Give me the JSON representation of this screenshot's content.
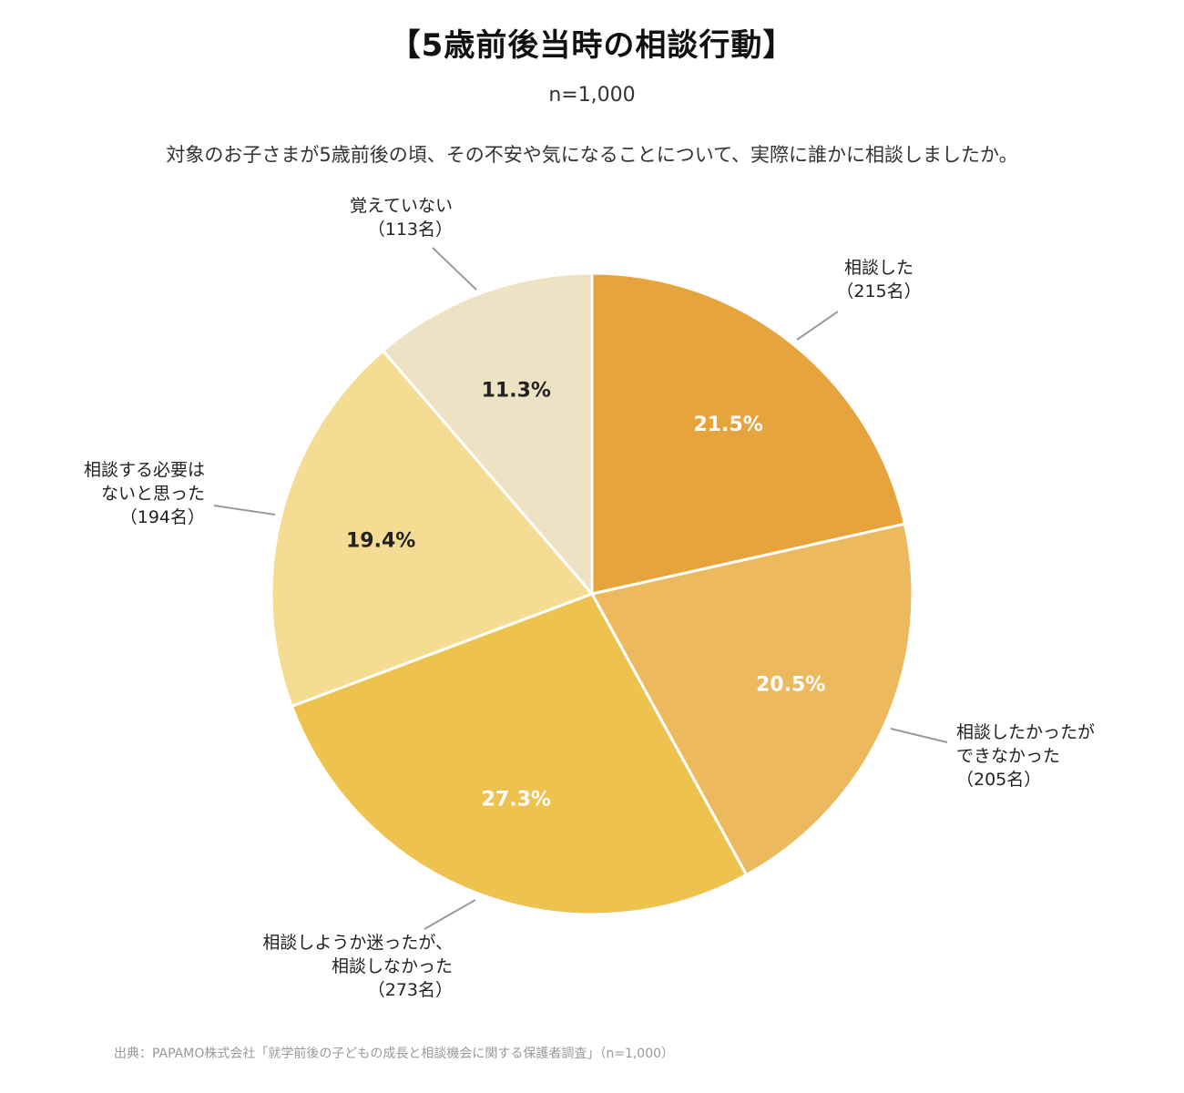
{
  "header": {
    "title": "【5歳前後当時の相談行動】",
    "sample": "n=1,000",
    "question": "対象のお子さまが5歳前後の頃、その不安や気になることについて、実際に誰かに相談しましたか。"
  },
  "chart_data": {
    "type": "pie",
    "start_angle_deg": 0,
    "direction": "clockwise",
    "slices": [
      {
        "label_lines": [
          "相談した",
          "（215名）"
        ],
        "value": 21.5,
        "pct_label": "21.5%",
        "count": 215,
        "color": "#E8A43C",
        "pct_color": "#ffffff"
      },
      {
        "label_lines": [
          "相談したかったが",
          "できなかった",
          "（205名）"
        ],
        "value": 20.5,
        "pct_label": "20.5%",
        "count": 205,
        "color": "#EDB95E",
        "pct_color": "#ffffff"
      },
      {
        "label_lines": [
          "相談しようか迷ったが、",
          "相談しなかった",
          "（273名）"
        ],
        "value": 27.3,
        "pct_label": "27.3%",
        "count": 273,
        "color": "#EEC24F",
        "pct_color": "#ffffff"
      },
      {
        "label_lines": [
          "相談する必要は",
          "ないと思った",
          "（194名）"
        ],
        "value": 19.4,
        "pct_label": "19.4%",
        "count": 194,
        "color": "#F5DC93",
        "pct_color": "#222222"
      },
      {
        "label_lines": [
          "覚えていない",
          "（113名）"
        ],
        "value": 11.3,
        "pct_label": "11.3%",
        "count": 113,
        "color": "#EDE2C3",
        "pct_color": "#222222"
      }
    ]
  },
  "footer": {
    "source": "出典：PAPAMO株式会社「就学前後の子どもの成長と相談機会に関する保護者調査」（n=1,000）"
  }
}
